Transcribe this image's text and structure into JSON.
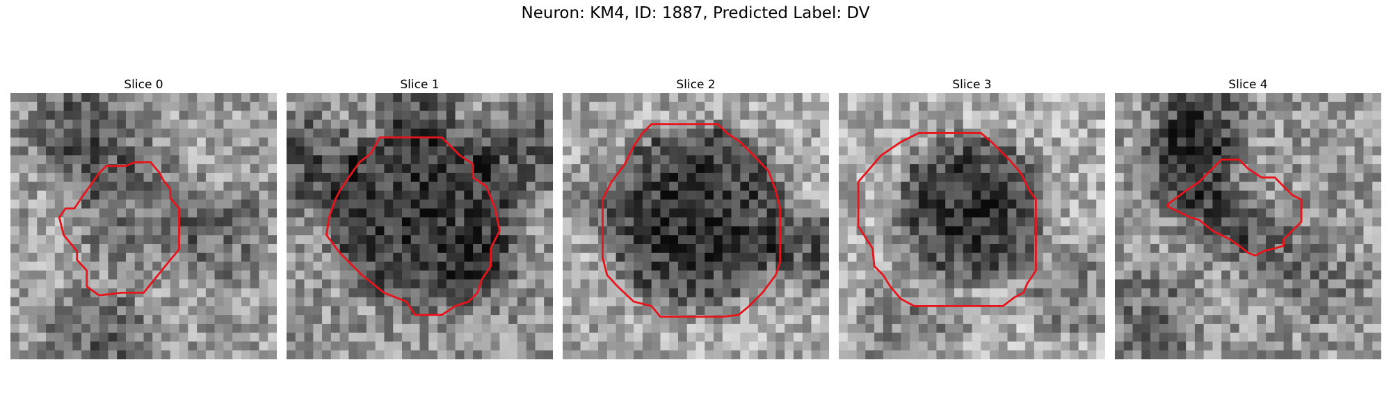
{
  "figure": {
    "title": "Neuron: KM4, ID: 1887, Predicted Label: DV"
  },
  "slices": [
    {
      "title": "Slice 0"
    },
    {
      "title": "Slice 1"
    },
    {
      "title": "Slice 2"
    },
    {
      "title": "Slice 3"
    },
    {
      "title": "Slice 4"
    }
  ],
  "colors": {
    "contour": "#e8141c"
  }
}
